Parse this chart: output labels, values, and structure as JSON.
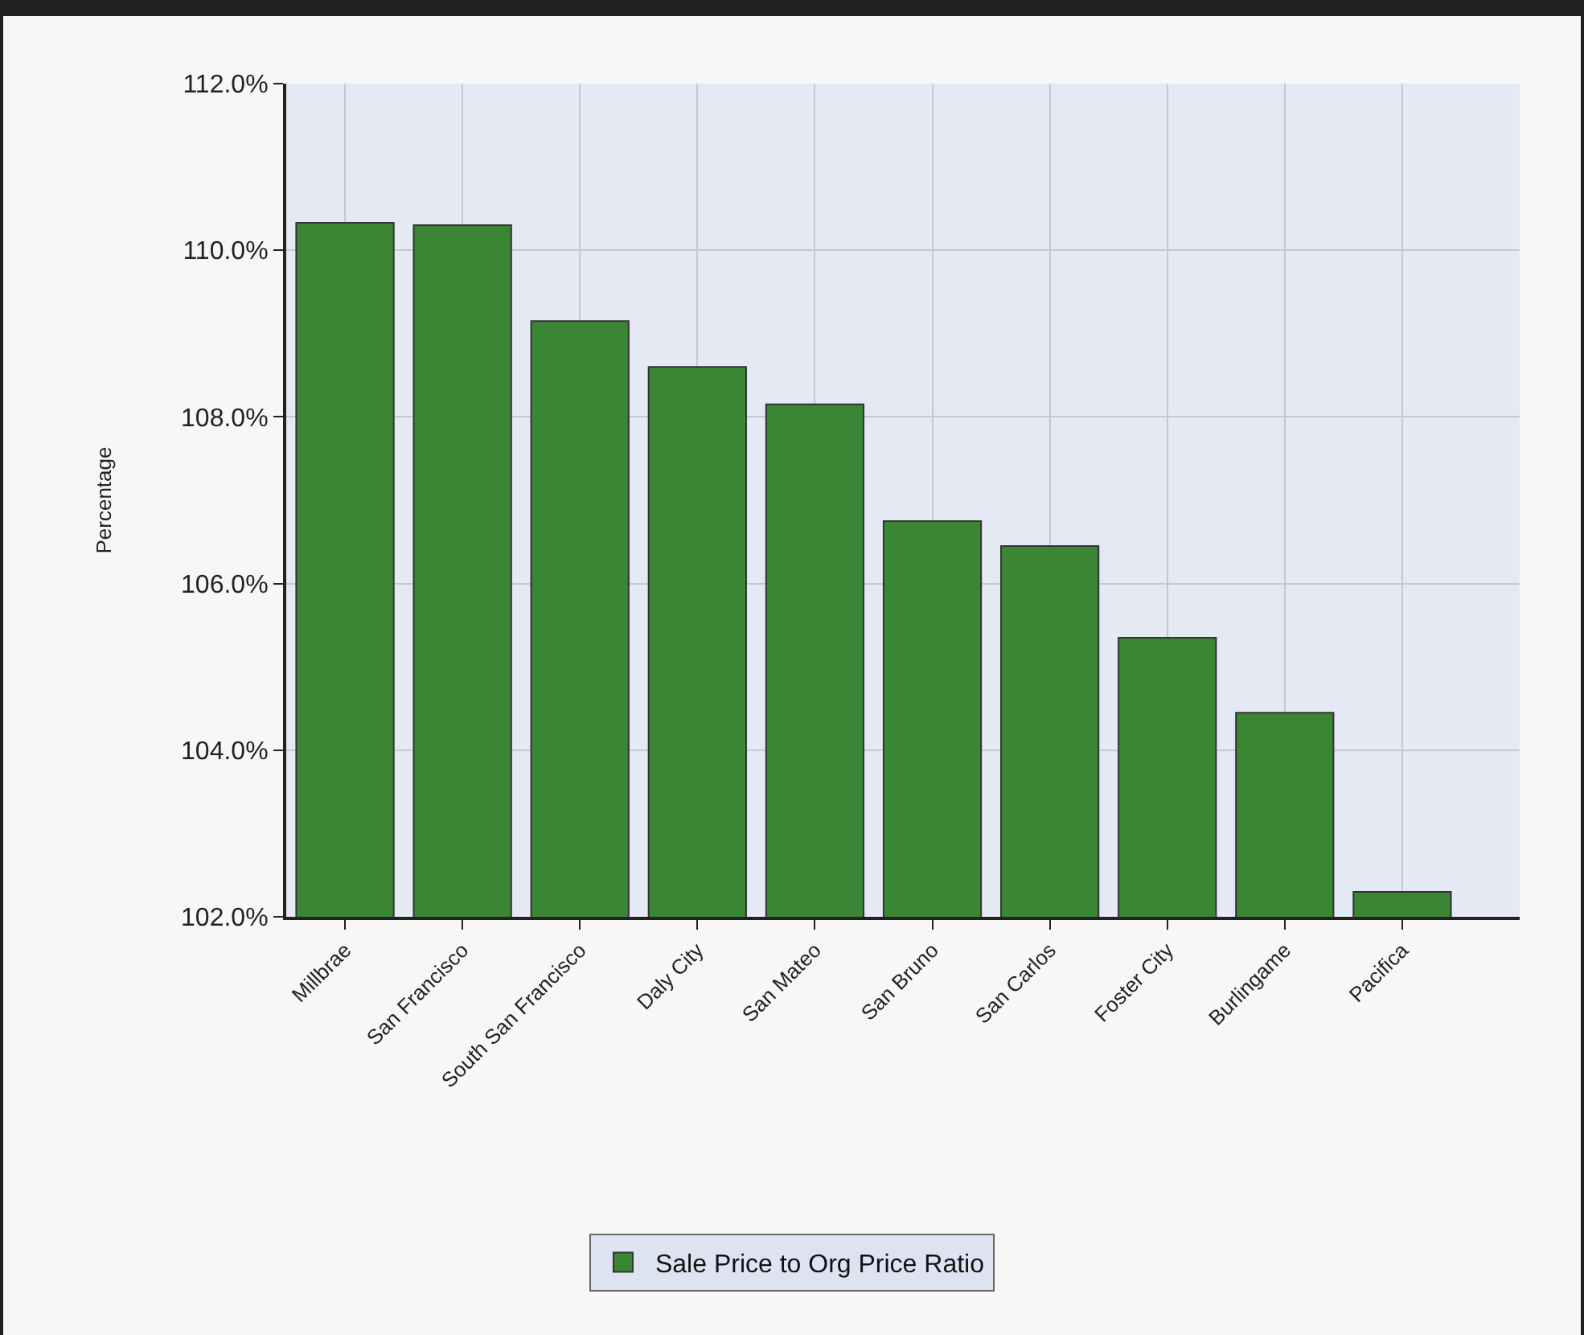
{
  "chart_data": {
    "type": "bar",
    "ylabel": "Percentage",
    "categories": [
      "Millbrae",
      "San Francisco",
      "South San Francisco",
      "Daly City",
      "San Mateo",
      "San Bruno",
      "San Carlos",
      "Foster City",
      "Burlingame",
      "Pacifica"
    ],
    "series": [
      {
        "name": "Sale Price to Org Price Ratio",
        "color": "#3b8635",
        "values": [
          110.33,
          110.3,
          109.15,
          108.6,
          108.15,
          106.75,
          106.45,
          105.35,
          104.45,
          102.3
        ]
      }
    ],
    "ylim": [
      102,
      112
    ],
    "yticks": [
      {
        "value": 102,
        "label": "102.0%"
      },
      {
        "value": 104,
        "label": "104.0%"
      },
      {
        "value": 106,
        "label": "106.0%"
      },
      {
        "value": 108,
        "label": "108.0%"
      },
      {
        "value": 110,
        "label": "110.0%"
      },
      {
        "value": 112,
        "label": "112.0%"
      }
    ],
    "grid": true,
    "legend": "bottom"
  }
}
